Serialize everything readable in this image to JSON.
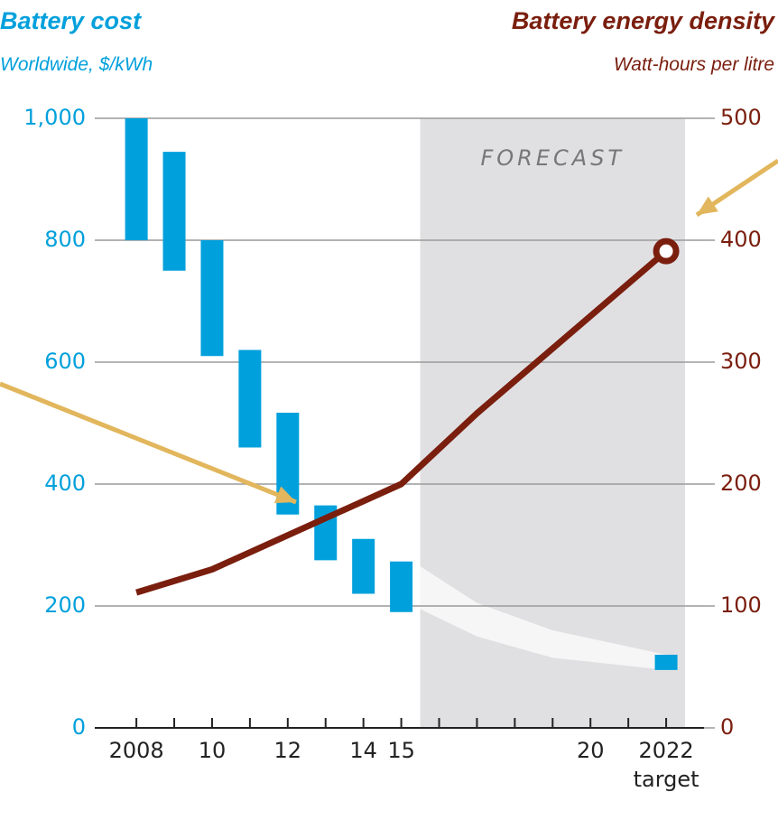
{
  "chart_data": {
    "type": "combo",
    "forecast_label": "FORECAST",
    "forecast_span": [
      2015.5,
      2022.5
    ],
    "forecast_band": {
      "x": [
        2015.5,
        2017,
        2019,
        2022
      ],
      "upper": [
        265,
        205,
        160,
        120
      ],
      "lower": [
        195,
        150,
        115,
        95
      ]
    },
    "xlim": [
      2006.9,
      2023
    ],
    "xticks": [
      2008,
      2009,
      2010,
      2011,
      2012,
      2013,
      2014,
      2015,
      2016,
      2017,
      2018,
      2019,
      2020,
      2021,
      2022
    ],
    "xlabels": [
      {
        "value": 2008,
        "label": "2008"
      },
      {
        "value": 2010,
        "label": "10"
      },
      {
        "value": 2012,
        "label": "12"
      },
      {
        "value": 2014,
        "label": "14"
      },
      {
        "value": 2015,
        "label": "15"
      },
      {
        "value": 2020,
        "label": "20"
      },
      {
        "value": 2022,
        "label": "2022"
      }
    ],
    "xlabel_note": {
      "value": 2022,
      "label": "target"
    },
    "ylim": [
      0,
      1000
    ],
    "yticks": [
      0,
      200,
      400,
      600,
      800,
      {
        "value": 1000,
        "label": "1,000"
      }
    ],
    "y2lim": [
      0,
      500
    ],
    "y2ticks": [
      0,
      100,
      200,
      300,
      400,
      500
    ],
    "grid": true,
    "series": [
      {
        "name": "Battery cost",
        "subtitle": "Worldwide, $/kWh",
        "type": "range-bar",
        "color": "#00a0dc",
        "x": [
          2008,
          2009,
          2010,
          2011,
          2012,
          2013,
          2014,
          2015,
          2022
        ],
        "low": [
          800,
          750,
          610,
          460,
          350,
          275,
          220,
          190,
          95
        ],
        "high": [
          1000,
          945,
          800,
          620,
          517,
          365,
          310,
          273,
          120
        ]
      },
      {
        "name": "Battery energy density",
        "subtitle": "Watt-hours per litre",
        "type": "line",
        "axis": "y2",
        "color": "#7a1e0e",
        "x": [
          2008,
          2010,
          2015,
          2017,
          2022
        ],
        "values": [
          111,
          130,
          200,
          258,
          391
        ],
        "end_marker": true
      }
    ]
  }
}
